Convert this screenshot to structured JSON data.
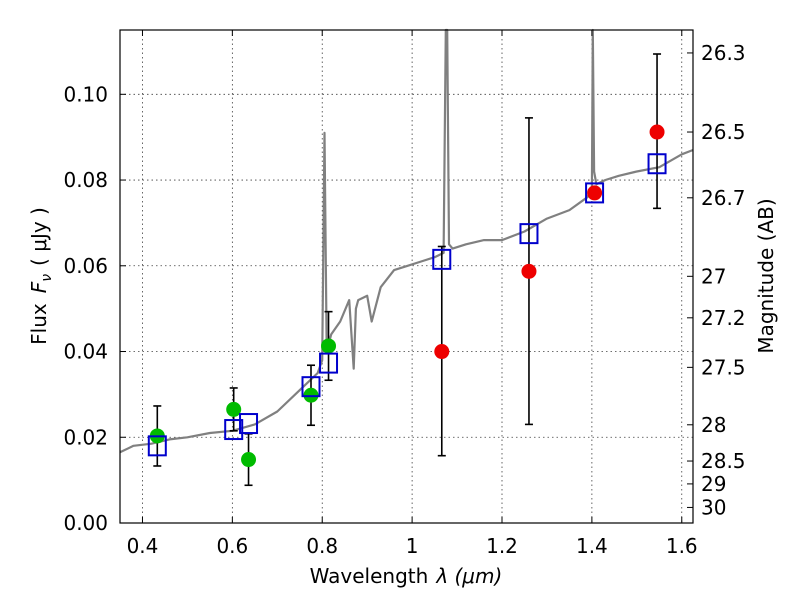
{
  "chart_data": {
    "type": "scatter",
    "title": "",
    "xlabel_text": "Wavelength",
    "xlabel_math": "λ (μm)",
    "ylabel_text": "Flux",
    "ylabel_math": "F",
    "ylabel_sub": "ν",
    "ylabel_unit": "( μJy )",
    "y2label": "Magnitude (AB)",
    "xlim": [
      0.35,
      1.625
    ],
    "ylim": [
      0.0,
      0.115
    ],
    "grid": true,
    "xticks": [
      0.4,
      0.6,
      0.8,
      1.0,
      1.2,
      1.4,
      1.6
    ],
    "xtick_labels": [
      "0.4",
      "0.6",
      "0.8",
      "1",
      "1.2",
      "1.4",
      "1.6"
    ],
    "yticks": [
      0.0,
      0.02,
      0.04,
      0.06,
      0.08,
      0.1
    ],
    "ytick_labels": [
      "0.00",
      "0.02",
      "0.04",
      "0.06",
      "0.08",
      "0.10"
    ],
    "magnitude_ticks": [
      26.3,
      26.5,
      26.7,
      27,
      27.2,
      27.5,
      28,
      28.5,
      29,
      30
    ],
    "magnitude_tick_labels": [
      "26.3",
      "26.5",
      "26.7",
      "27",
      "27.2",
      "27.5",
      "28",
      "28.5",
      "29",
      "30"
    ],
    "colors": {
      "model": "#808080",
      "observed_green": "#00bb00",
      "observed_red": "#ee0000",
      "model_boxes": "#0000cc",
      "errorbar": "#000000"
    },
    "model_spectrum": {
      "x": [
        0.35,
        0.38,
        0.42,
        0.46,
        0.5,
        0.55,
        0.6,
        0.65,
        0.7,
        0.75,
        0.79,
        0.8,
        0.805,
        0.81,
        0.82,
        0.84,
        0.86,
        0.87,
        0.875,
        0.88,
        0.9,
        0.91,
        0.93,
        0.96,
        0.99,
        1.02,
        1.05,
        1.07,
        1.075,
        1.078,
        1.082,
        1.09,
        1.12,
        1.16,
        1.2,
        1.25,
        1.3,
        1.35,
        1.39,
        1.4,
        1.402,
        1.405,
        1.41,
        1.43,
        1.46,
        1.5,
        1.55,
        1.6,
        1.625
      ],
      "y": [
        0.0165,
        0.018,
        0.0185,
        0.0195,
        0.02,
        0.021,
        0.0215,
        0.023,
        0.026,
        0.031,
        0.035,
        0.038,
        0.091,
        0.04,
        0.044,
        0.047,
        0.052,
        0.036,
        0.05,
        0.052,
        0.053,
        0.047,
        0.055,
        0.059,
        0.06,
        0.061,
        0.062,
        0.063,
        0.115,
        0.115,
        0.065,
        0.064,
        0.065,
        0.066,
        0.066,
        0.068,
        0.071,
        0.073,
        0.076,
        0.078,
        0.115,
        0.082,
        0.079,
        0.08,
        0.081,
        0.082,
        0.083,
        0.086,
        0.087
      ]
    },
    "series": [
      {
        "name": "",
        "marker": "circle",
        "color": "green",
        "x": [
          0.433,
          0.603,
          0.636,
          0.775,
          0.814
        ],
        "y": [
          0.0203,
          0.0265,
          0.0148,
          0.0298,
          0.0413
        ],
        "yerr_low": [
          0.007,
          0.005,
          0.006,
          0.007,
          0.008
        ],
        "yerr_high": [
          0.007,
          0.005,
          0.006,
          0.007,
          0.008
        ]
      },
      {
        "name": "",
        "marker": "circle",
        "color": "red",
        "x": [
          1.066,
          1.26,
          1.406,
          1.545
        ],
        "y": [
          0.04,
          0.0587,
          0.077,
          0.0912
        ],
        "yerr_low": [
          0.0243,
          0.0357,
          0.0,
          0.0178
        ],
        "yerr_high": [
          0.0245,
          0.0358,
          0.0,
          0.0182
        ]
      },
      {
        "name": "",
        "marker": "open-square",
        "color": "blue",
        "x": [
          0.433,
          0.603,
          0.636,
          0.775,
          0.814,
          1.066,
          1.26,
          1.406,
          1.545
        ],
        "y": [
          0.018,
          0.0218,
          0.0232,
          0.0318,
          0.0373,
          0.0615,
          0.0675,
          0.077,
          0.0838
        ]
      }
    ]
  }
}
